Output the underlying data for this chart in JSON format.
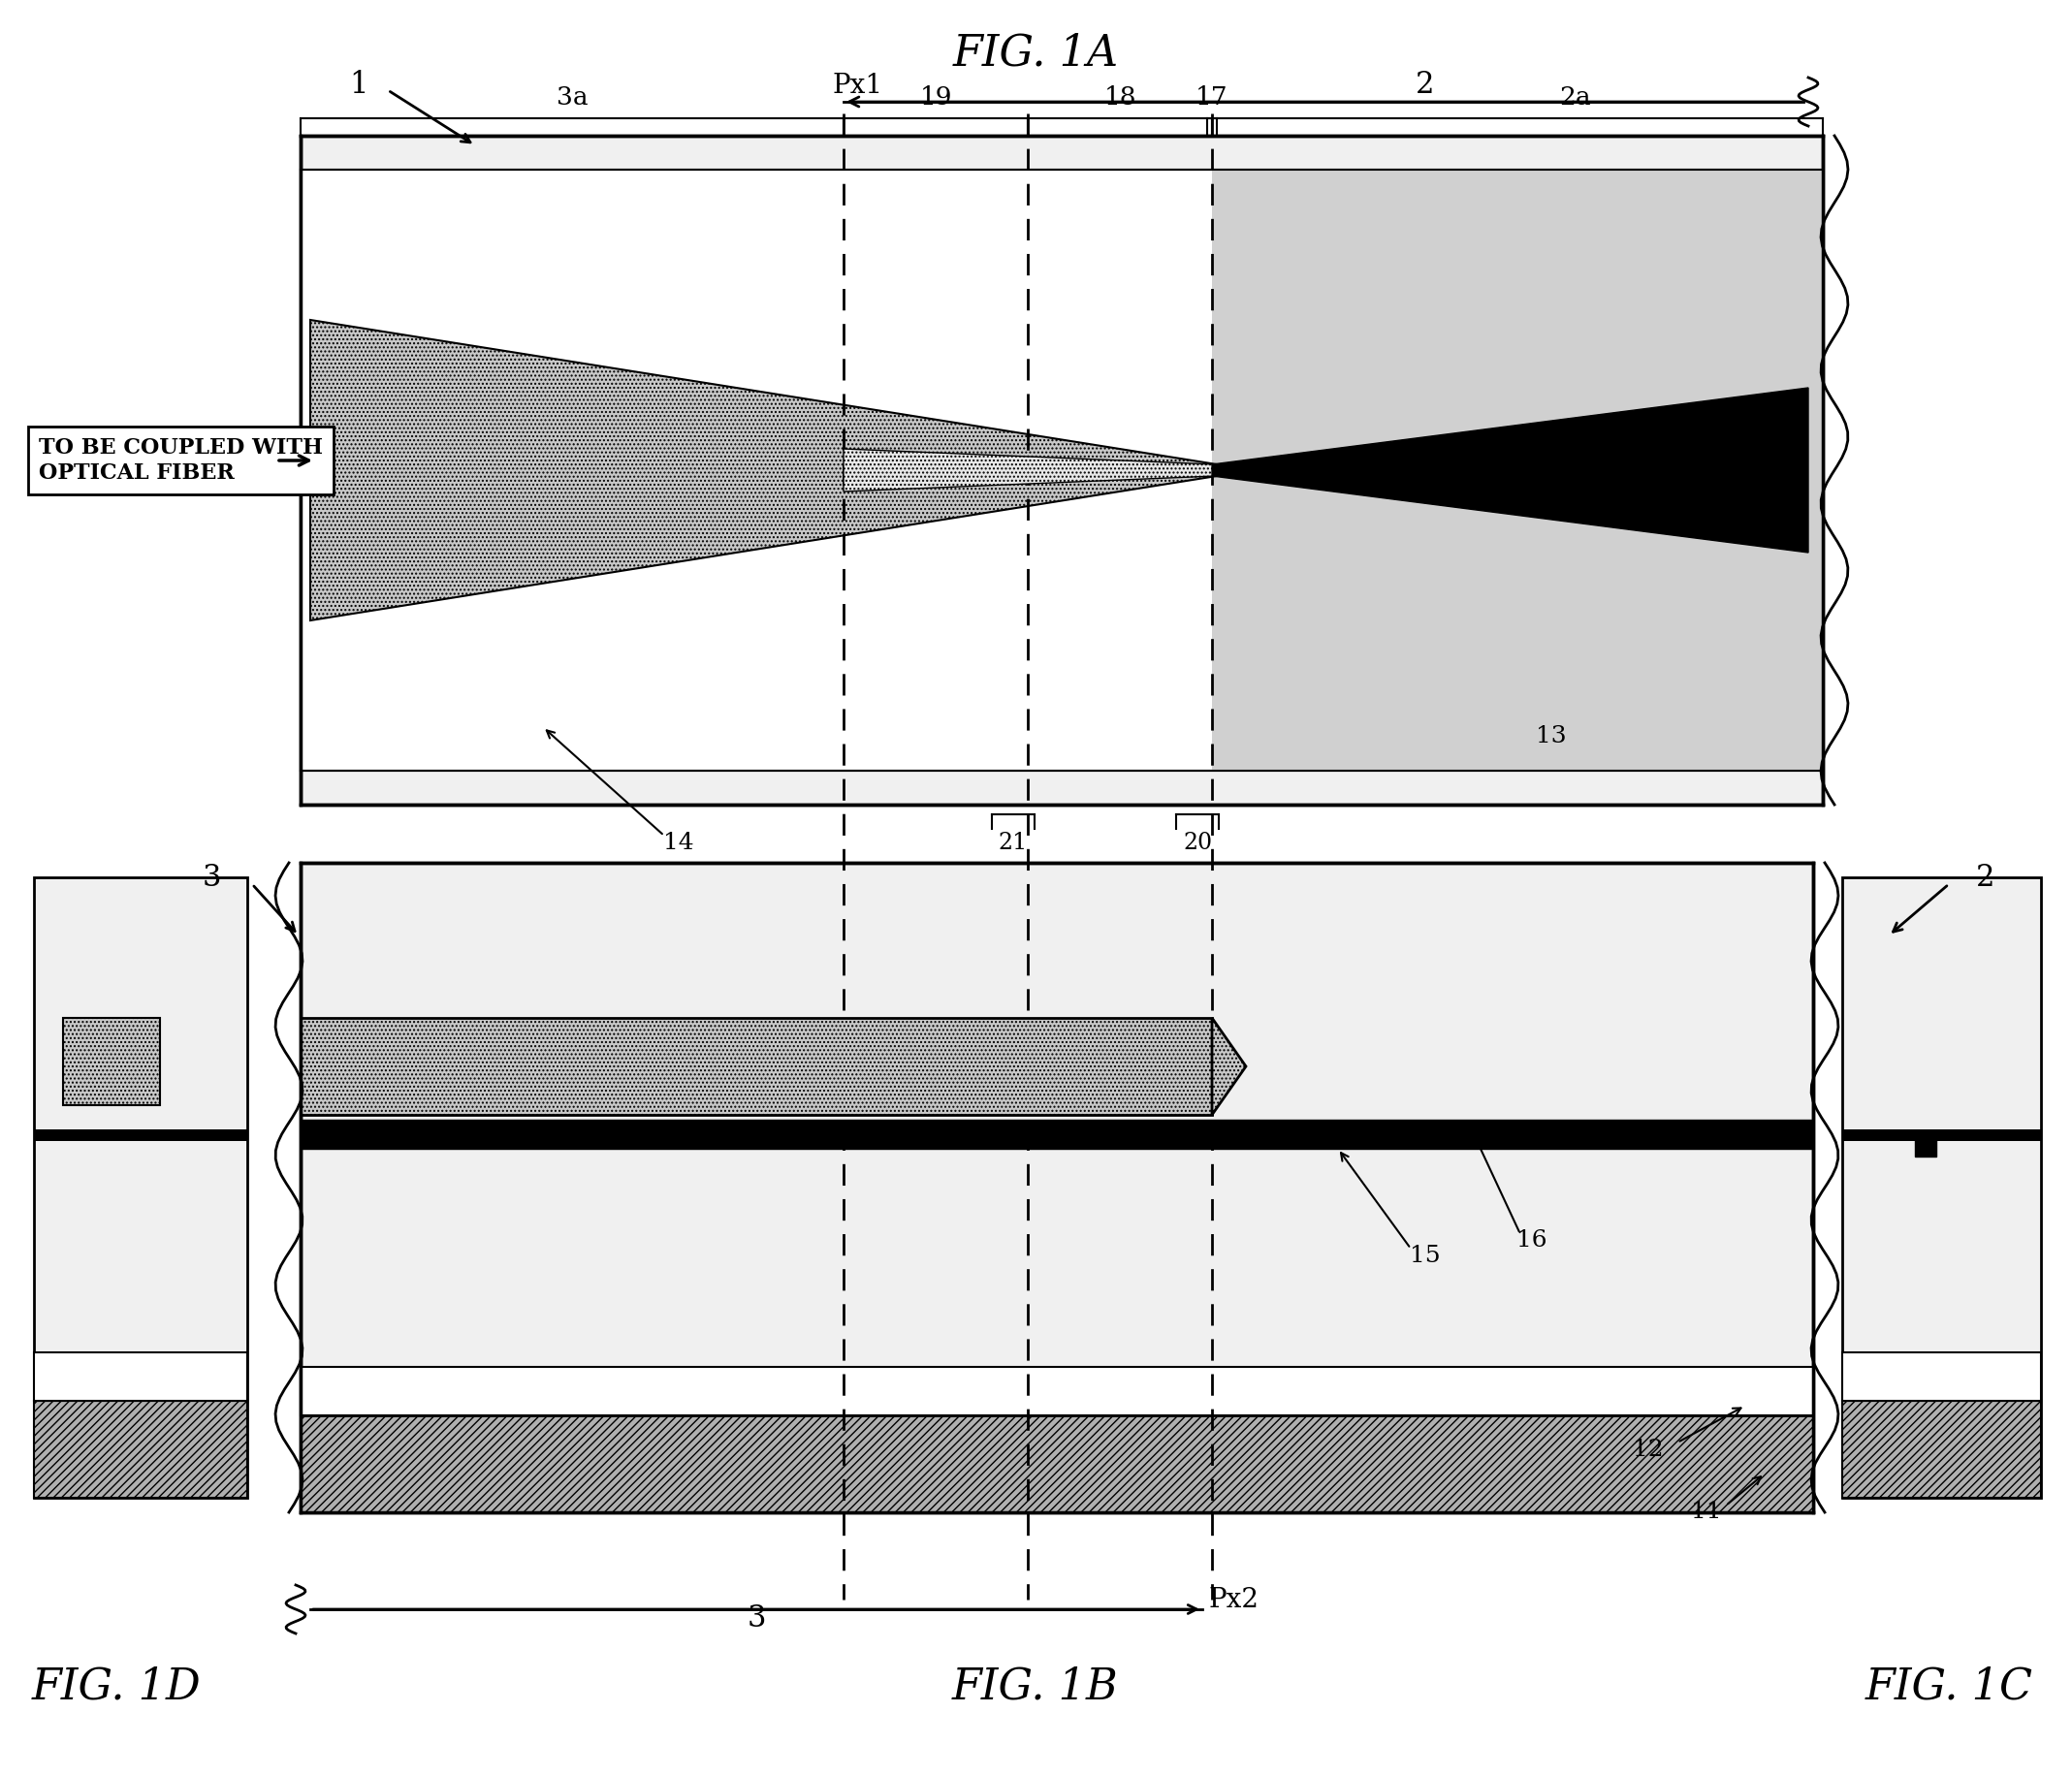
{
  "title_top": "FIG. 1A",
  "title_bottom": "FIG. 1B",
  "title_left": "FIG. 1D",
  "title_right": "FIG. 1C",
  "label_1": "1",
  "label_2": "2",
  "label_2a": "2a",
  "label_3": "3",
  "label_3a": "3a",
  "label_11": "11",
  "label_12": "12",
  "label_13": "13",
  "label_14": "14",
  "label_15": "15",
  "label_16": "16",
  "label_17": "17",
  "label_18": "18",
  "label_19": "19",
  "label_20": "20",
  "label_21": "21",
  "label_Px1": "Px1",
  "label_Px2": "Px2",
  "fiber_text": "TO BE COUPLED WITH\nOPTICAL FIBER",
  "bg_color": "#ffffff",
  "black": "#000000",
  "dark_gray": "#333333",
  "medium_gray": "#888888",
  "light_gray": "#cccccc",
  "hatch_gray": "#aaaaaa",
  "very_light_gray": "#eeeeee"
}
